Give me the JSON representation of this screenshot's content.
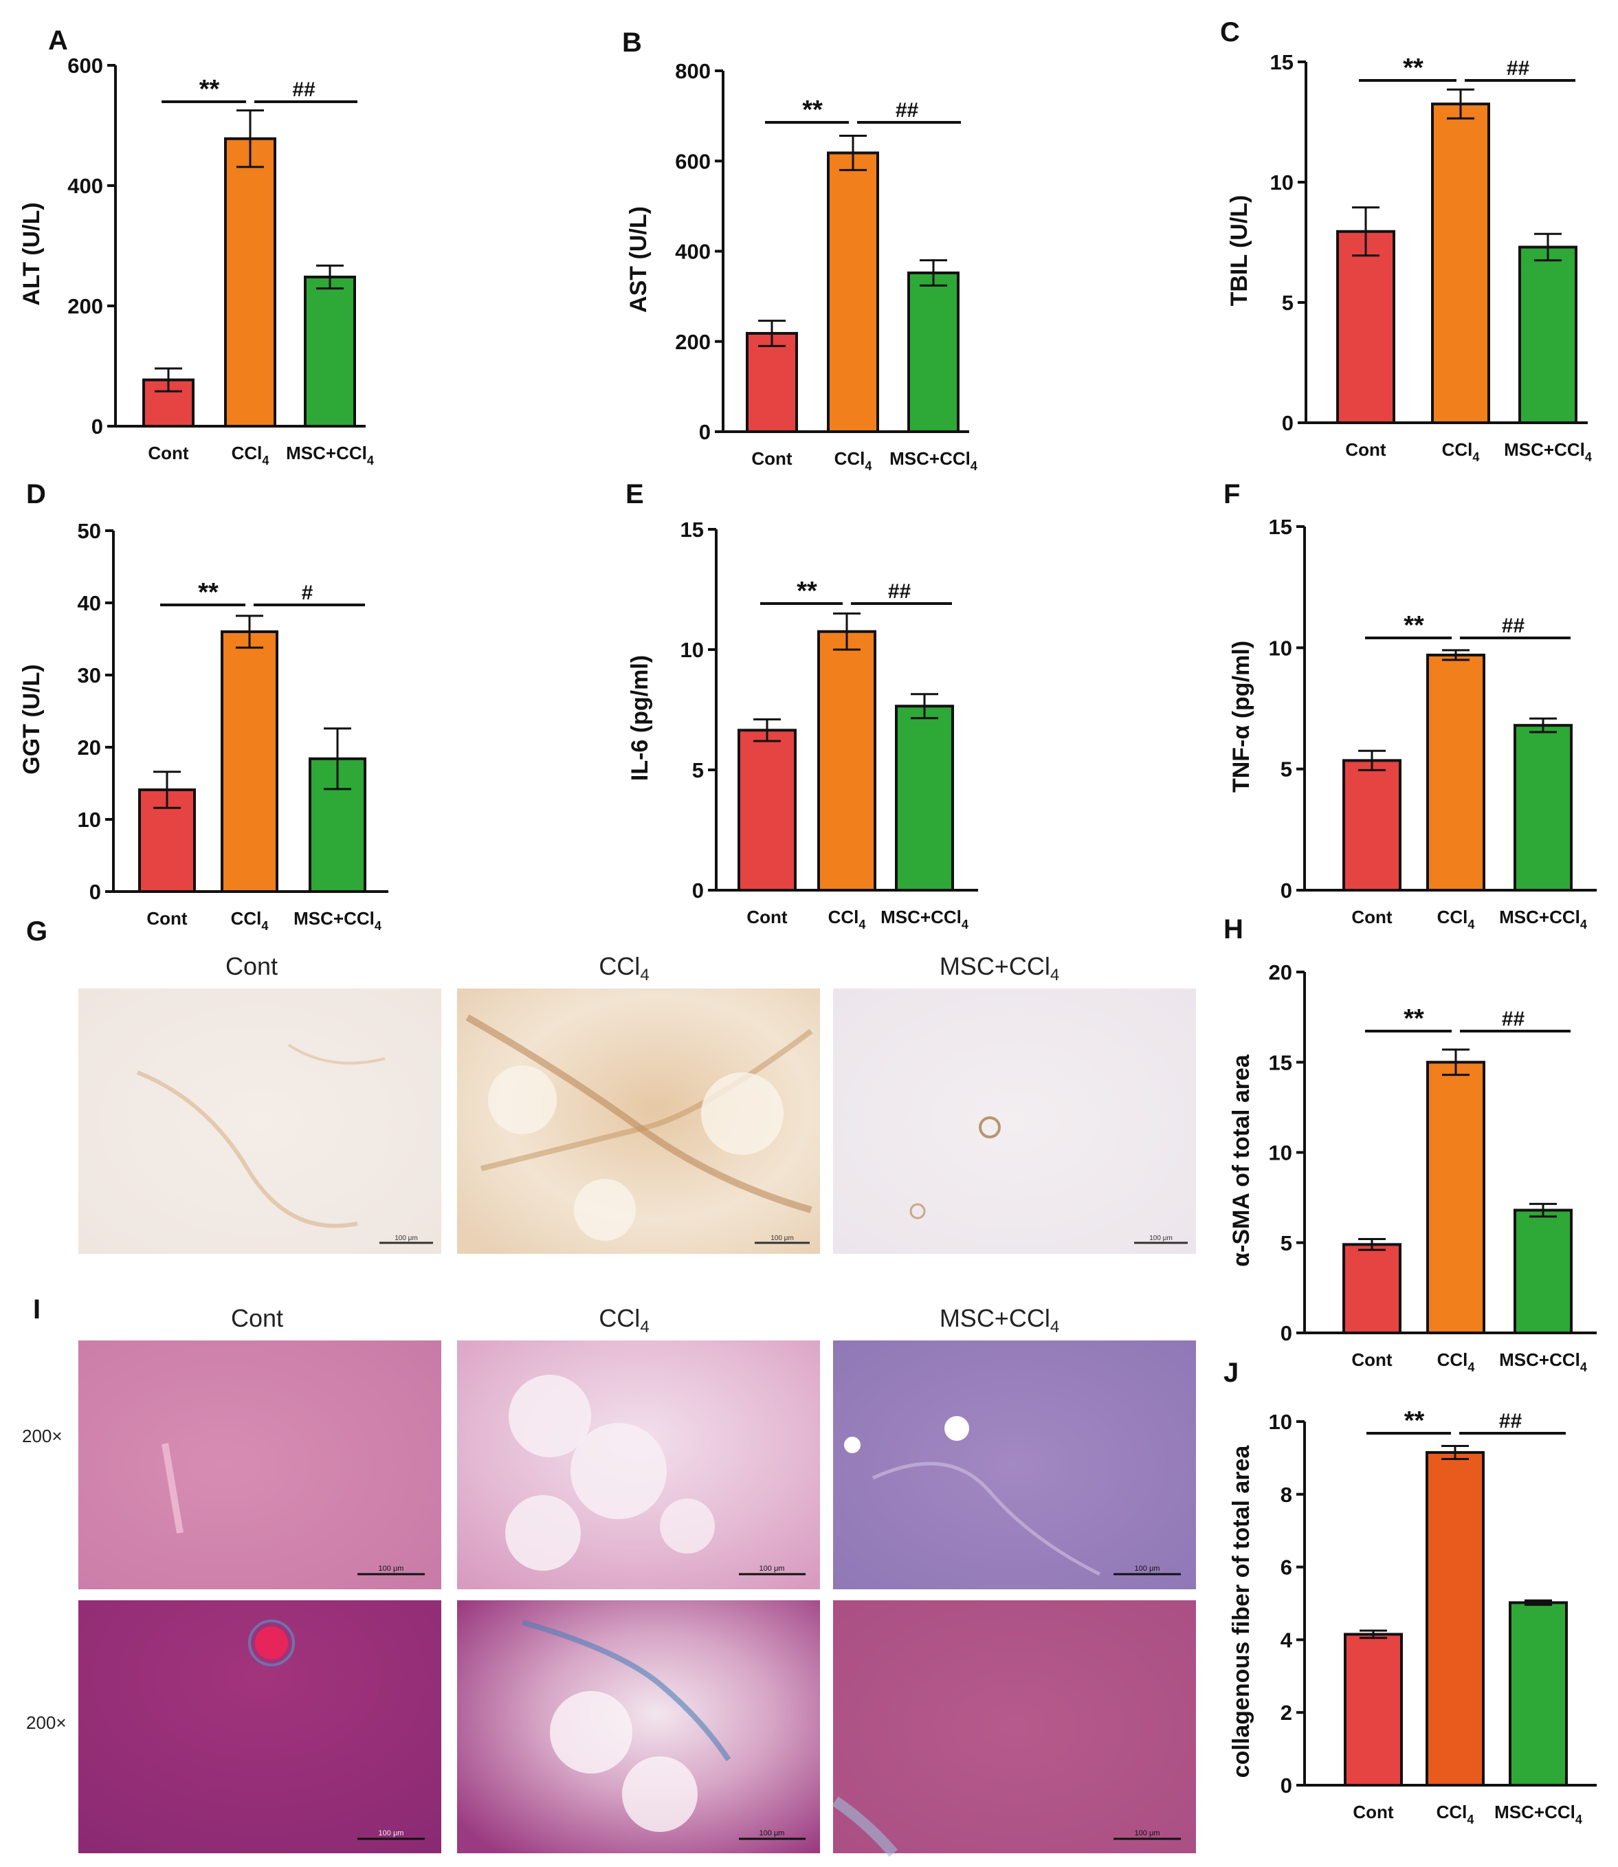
{
  "colors": {
    "cont": "#e64343",
    "ccl4": "#f07f1c",
    "ccl4_dark": "#e95b1c",
    "msc": "#2ea836"
  },
  "groups": {
    "cont": "Cont",
    "ccl4": "CCl",
    "ccl4_sub": "4",
    "msc": "MSC+CCl",
    "msc_sub": "4"
  },
  "micrographs": {
    "G": {
      "letter": "G",
      "scale_bar": "100 μm"
    },
    "I": {
      "letter": "I",
      "magnification": "200×",
      "scale_bar": "100 μm"
    }
  },
  "chart_data": [
    {
      "id": "A",
      "letter": "A",
      "type": "bar",
      "ylabel": "ALT (U/L)",
      "categories": [
        "Cont",
        "CCl4",
        "MSC+CCl4"
      ],
      "values": [
        77,
        478,
        248
      ],
      "errors": [
        19,
        47,
        19
      ],
      "ylim": [
        0,
        600
      ],
      "yticks": [
        "0",
        "200",
        "400",
        "600"
      ],
      "sig": [
        "**",
        "##"
      ]
    },
    {
      "id": "B",
      "letter": "B",
      "type": "bar",
      "ylabel": "AST (U/L)",
      "categories": [
        "Cont",
        "CCl4",
        "MSC+CCl4"
      ],
      "values": [
        218,
        618,
        352
      ],
      "errors": [
        28,
        38,
        28
      ],
      "ylim": [
        0,
        800
      ],
      "yticks": [
        "0",
        "200",
        "400",
        "600",
        "800"
      ],
      "sig": [
        "**",
        "##"
      ]
    },
    {
      "id": "C",
      "letter": "C",
      "type": "bar",
      "ylabel": "TBIL (U/L)",
      "categories": [
        "Cont",
        "CCl4",
        "MSC+CCl4"
      ],
      "values": [
        7.95,
        13.25,
        7.3
      ],
      "errors": [
        1.0,
        0.6,
        0.55
      ],
      "ylim": [
        0,
        15
      ],
      "yticks": [
        "0",
        "5",
        "10",
        "15"
      ],
      "sig": [
        "**",
        "##"
      ]
    },
    {
      "id": "D",
      "letter": "D",
      "type": "bar",
      "ylabel": "GGT (U/L)",
      "categories": [
        "Cont",
        "CCl4",
        "MSC+CCl4"
      ],
      "values": [
        14.1,
        36,
        18.4
      ],
      "errors": [
        2.5,
        2.2,
        4.2
      ],
      "ylim": [
        0,
        50
      ],
      "yticks": [
        "0",
        "10",
        "20",
        "30",
        "40",
        "50"
      ],
      "sig": [
        "**",
        "#"
      ]
    },
    {
      "id": "E",
      "letter": "E",
      "type": "bar",
      "ylabel": "IL-6 (pg/ml)",
      "categories": [
        "Cont",
        "CCl4",
        "MSC+CCl4"
      ],
      "values": [
        6.65,
        10.75,
        7.65
      ],
      "errors": [
        0.45,
        0.75,
        0.5
      ],
      "ylim": [
        0,
        15
      ],
      "yticks": [
        "0",
        "5",
        "10",
        "15"
      ],
      "sig": [
        "**",
        "##"
      ]
    },
    {
      "id": "F",
      "letter": "F",
      "type": "bar",
      "ylabel": "TNF-α (pg/ml)",
      "categories": [
        "Cont",
        "CCl4",
        "MSC+CCl4"
      ],
      "values": [
        5.35,
        9.7,
        6.8
      ],
      "errors": [
        0.4,
        0.2,
        0.28
      ],
      "ylim": [
        0,
        15
      ],
      "yticks": [
        "0",
        "5",
        "10",
        "15"
      ],
      "sig": [
        "**",
        "##"
      ]
    },
    {
      "id": "H",
      "letter": "H",
      "type": "bar",
      "ylabel": "α-SMA of total area",
      "categories": [
        "Cont",
        "CCl4",
        "MSC+CCl4"
      ],
      "values": [
        4.9,
        15,
        6.8
      ],
      "errors": [
        0.3,
        0.7,
        0.35
      ],
      "ylim": [
        0,
        20
      ],
      "yticks": [
        "0",
        "5",
        "10",
        "15",
        "20"
      ],
      "sig": [
        "**",
        "##"
      ]
    },
    {
      "id": "J",
      "letter": "J",
      "type": "bar",
      "ylabel": "collagenous fiber of total area",
      "categories": [
        "Cont",
        "CCl4",
        "MSC+CCl4"
      ],
      "values": [
        4.15,
        9.15,
        5.02
      ],
      "errors": [
        0.1,
        0.18,
        0.06
      ],
      "ylim": [
        0,
        10
      ],
      "yticks": [
        "0",
        "2",
        "4",
        "6",
        "8",
        "10"
      ],
      "sig": [
        "**",
        "##"
      ]
    }
  ]
}
